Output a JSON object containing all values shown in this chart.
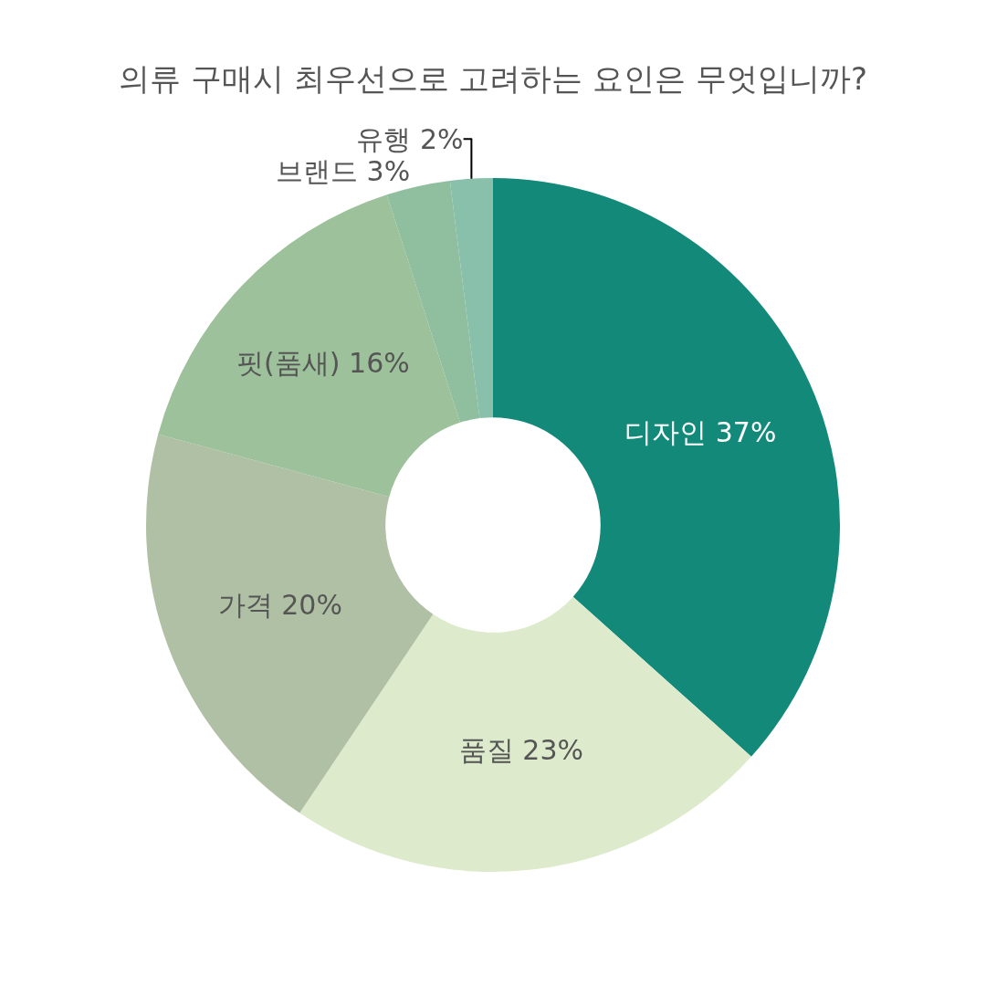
{
  "chart_data": {
    "type": "donut",
    "title": "의류 구매시 최우선으로 고려하는 요인은 무엇입니까?",
    "categories": [
      "디자인",
      "품질",
      "가격",
      "핏(품새)",
      "브랜드",
      "유행"
    ],
    "values": [
      37,
      23,
      20,
      16,
      3,
      2
    ],
    "value_labels": [
      "37%",
      "23%",
      "20%",
      "16%",
      "3%",
      "2%"
    ],
    "colors": [
      "#13897a",
      "#ddebcc",
      "#b0c0a4",
      "#9dc19a",
      "#8fbf9e",
      "#88c0ac"
    ],
    "legend": false
  }
}
